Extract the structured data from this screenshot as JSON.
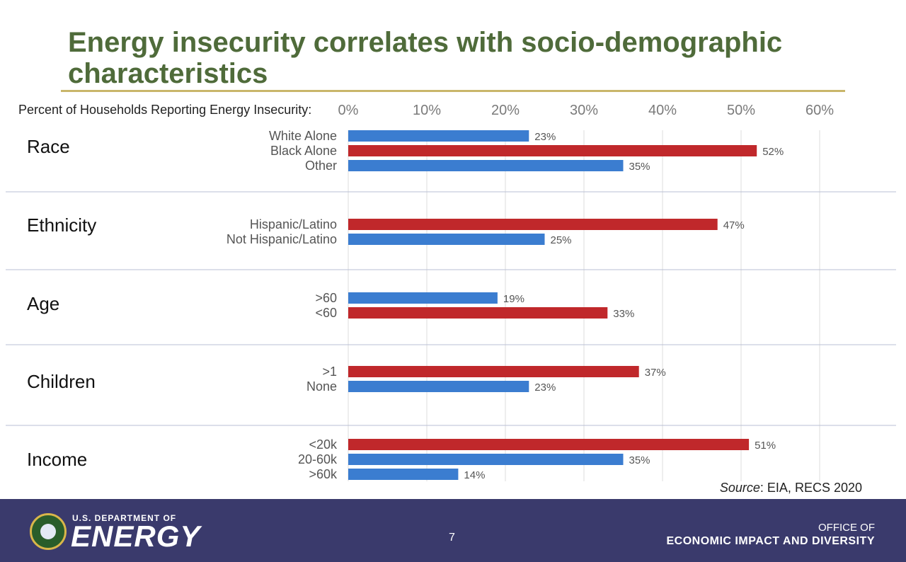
{
  "slide": {
    "title": "Energy insecurity correlates with socio-demographic characteristics",
    "axis_caption": "Percent of Households Reporting Energy Insecurity:",
    "source_label": "Source",
    "source_text": ": EIA, RECS 2020",
    "page_number": "7"
  },
  "footer": {
    "dept_small": "U.S. DEPARTMENT OF",
    "dept_big": "ENERGY",
    "office_line1": "OFFICE OF",
    "office_line2": "ECONOMIC IMPACT AND DIVERSITY"
  },
  "colors": {
    "blue": "#3b7dd0",
    "red": "#c0282b",
    "grid": "#dcdcdc",
    "separator": "#b8bfd4"
  },
  "chart_data": {
    "type": "bar",
    "orientation": "horizontal",
    "x_range": [
      0,
      60
    ],
    "x_ticks": [
      0,
      10,
      20,
      30,
      40,
      50,
      60
    ],
    "x_tick_labels": [
      "0%",
      "10%",
      "20%",
      "30%",
      "40%",
      "50%",
      "60%"
    ],
    "grid": true,
    "groups": [
      {
        "name": "Race",
        "bars": [
          {
            "label": "White Alone",
            "value": 23,
            "value_label": "23%",
            "color": "blue"
          },
          {
            "label": "Black Alone",
            "value": 52,
            "value_label": "52%",
            "color": "red"
          },
          {
            "label": "Other",
            "value": 35,
            "value_label": "35%",
            "color": "blue"
          }
        ]
      },
      {
        "name": "Ethnicity",
        "bars": [
          {
            "label": "Hispanic/Latino",
            "value": 47,
            "value_label": "47%",
            "color": "red"
          },
          {
            "label": "Not Hispanic/Latino",
            "value": 25,
            "value_label": "25%",
            "color": "blue"
          }
        ]
      },
      {
        "name": "Age",
        "bars": [
          {
            "label": ">60",
            "value": 19,
            "value_label": "19%",
            "color": "blue"
          },
          {
            "label": "<60",
            "value": 33,
            "value_label": "33%",
            "color": "red"
          }
        ]
      },
      {
        "name": "Children",
        "bars": [
          {
            "label": ">1",
            "value": 37,
            "value_label": "37%",
            "color": "red"
          },
          {
            "label": "None",
            "value": 23,
            "value_label": "23%",
            "color": "blue"
          }
        ]
      },
      {
        "name": "Income",
        "bars": [
          {
            "label": "<20k",
            "value": 51,
            "value_label": "51%",
            "color": "red"
          },
          {
            "label": "20-60k",
            "value": 35,
            "value_label": "35%",
            "color": "blue"
          },
          {
            "label": ">60k",
            "value": 14,
            "value_label": "14%",
            "color": "blue"
          }
        ]
      }
    ]
  }
}
